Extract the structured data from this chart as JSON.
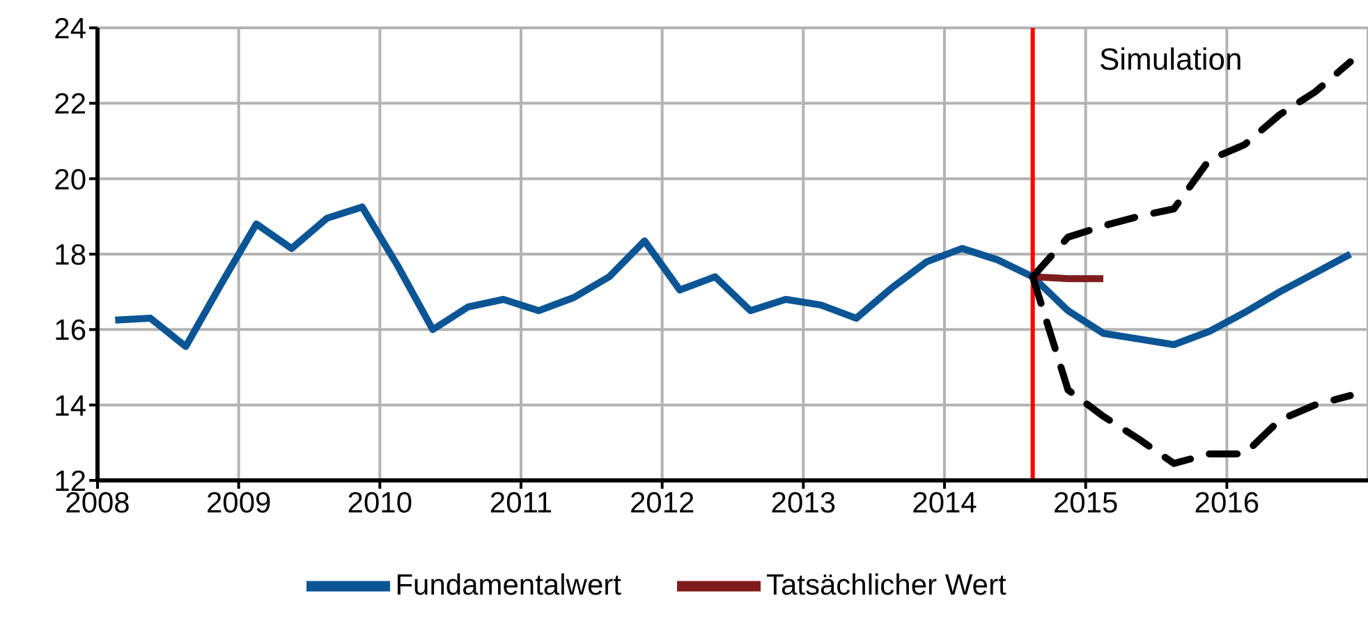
{
  "chart_data": {
    "type": "line",
    "x": [
      2008.125,
      2008.375,
      2008.625,
      2008.875,
      2009.125,
      2009.375,
      2009.625,
      2009.875,
      2010.125,
      2010.375,
      2010.625,
      2010.875,
      2011.125,
      2011.375,
      2011.625,
      2011.875,
      2012.125,
      2012.375,
      2012.625,
      2012.875,
      2013.125,
      2013.375,
      2013.625,
      2013.875,
      2014.125,
      2014.375,
      2014.625,
      2014.875,
      2015.125,
      2015.375,
      2015.625,
      2015.875,
      2016.125,
      2016.375,
      2016.625,
      2016.875
    ],
    "series": [
      {
        "name": "Fundamentalwert",
        "color": "#0b5595",
        "line_style": "solid",
        "values": [
          16.25,
          16.3,
          15.55,
          17.2,
          18.8,
          18.15,
          18.95,
          19.25,
          17.7,
          16.0,
          16.6,
          16.8,
          16.5,
          16.85,
          17.4,
          18.35,
          17.05,
          17.4,
          16.5,
          16.8,
          16.65,
          16.3,
          17.1,
          17.8,
          18.15,
          17.85,
          17.4,
          16.5,
          15.9,
          15.75,
          15.6,
          15.95,
          16.45,
          17.0,
          17.5,
          18.0
        ]
      },
      {
        "name": "Tatsächlicher Wert",
        "color": "#7f1d1d",
        "line_style": "solid",
        "values": [
          null,
          null,
          null,
          null,
          null,
          null,
          null,
          null,
          null,
          null,
          null,
          null,
          null,
          null,
          null,
          null,
          null,
          null,
          null,
          null,
          null,
          null,
          null,
          null,
          null,
          null,
          17.4,
          17.35,
          17.35,
          null,
          null,
          null,
          null,
          null,
          null,
          null
        ]
      },
      {
        "color": "#000000",
        "line_style": "dashed",
        "values": [
          null,
          null,
          null,
          null,
          null,
          null,
          null,
          null,
          null,
          null,
          null,
          null,
          null,
          null,
          null,
          null,
          null,
          null,
          null,
          null,
          null,
          null,
          null,
          null,
          null,
          null,
          17.4,
          18.45,
          18.75,
          19.0,
          19.2,
          20.5,
          20.9,
          21.7,
          22.3,
          23.1
        ]
      },
      {
        "color": "#000000",
        "line_style": "dashed",
        "values": [
          null,
          null,
          null,
          null,
          null,
          null,
          null,
          null,
          null,
          null,
          null,
          null,
          null,
          null,
          null,
          null,
          null,
          null,
          null,
          null,
          null,
          null,
          null,
          null,
          null,
          null,
          17.4,
          14.4,
          13.7,
          13.1,
          12.45,
          12.7,
          12.7,
          13.6,
          14.0,
          14.25
        ]
      }
    ],
    "xlim": [
      2008,
      2017
    ],
    "xticks": [
      2008,
      2009,
      2010,
      2011,
      2012,
      2013,
      2014,
      2015,
      2016
    ],
    "ylim": [
      12,
      24
    ],
    "yticks": [
      12,
      14,
      16,
      18,
      20,
      22,
      24
    ],
    "grid": true,
    "legend": "bottom",
    "ref_lines": [
      {
        "axis": "x",
        "value": 2014.625,
        "color": "#ff0000"
      }
    ],
    "annotations": [
      "Simulation"
    ]
  }
}
